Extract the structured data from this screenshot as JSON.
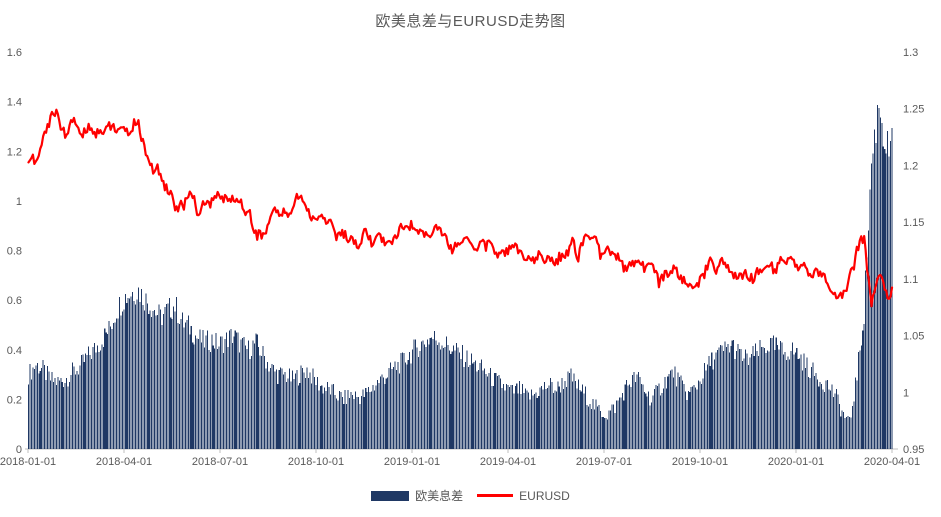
{
  "title": "欧美息差与EURUSD走势图",
  "colors": {
    "bar": "#1F3864",
    "line": "#FF0000",
    "axis_text": "#595959",
    "axis_line": "#BFBFBF",
    "title_text": "#595959",
    "background": "#FFFFFF"
  },
  "legend": [
    {
      "label": "欧美息差",
      "swatch": "bar"
    },
    {
      "label": "EURUSD",
      "swatch": "line"
    }
  ],
  "chart_data": {
    "type": "bar+line combo, daily series",
    "title": "欧美息差与EURUSD走势图",
    "x_start": "2018-01-01",
    "x_end": "2020-04-01",
    "x_tick_labels": [
      "2018-01-01",
      "2018-04-01",
      "2018-07-01",
      "2018-10-01",
      "2019-01-01",
      "2019-04-01",
      "2019-07-01",
      "2019-10-01",
      "2020-01-01",
      "2020-04-01"
    ],
    "grid": false,
    "legend_position": "bottom",
    "left_axis": {
      "min": 0,
      "max": 1.6,
      "tick_labels": [
        "0",
        "0.2",
        "0.4",
        "0.6",
        "0.8",
        "1",
        "1.2",
        "1.4",
        "1.6"
      ],
      "tick_values": [
        0,
        0.2,
        0.4,
        0.6,
        0.8,
        1,
        1.2,
        1.4,
        1.6
      ]
    },
    "right_axis": {
      "min": 0.95,
      "max": 1.3,
      "tick_labels": [
        "0.95",
        "1",
        "1.05",
        "1.1",
        "1.15",
        "1.2",
        "1.25",
        "1.3"
      ],
      "tick_values": [
        0.95,
        1,
        1.05,
        1.1,
        1.15,
        1.2,
        1.25,
        1.3
      ]
    },
    "sampling": "weekly values read from chart (weeks from 2018-01-01 to 2020-03-30); bars are daily weekday bars",
    "series": [
      {
        "name": "欧美息差",
        "type": "bar",
        "axis": "left",
        "values": [
          0.3,
          0.34,
          0.32,
          0.28,
          0.27,
          0.28,
          0.31,
          0.33,
          0.37,
          0.4,
          0.44,
          0.48,
          0.56,
          0.61,
          0.63,
          0.64,
          0.6,
          0.57,
          0.53,
          0.56,
          0.58,
          0.51,
          0.49,
          0.45,
          0.43,
          0.44,
          0.42,
          0.44,
          0.46,
          0.42,
          0.4,
          0.43,
          0.38,
          0.33,
          0.3,
          0.3,
          0.28,
          0.3,
          0.32,
          0.28,
          0.25,
          0.24,
          0.22,
          0.2,
          0.22,
          0.21,
          0.22,
          0.25,
          0.28,
          0.3,
          0.33,
          0.35,
          0.38,
          0.41,
          0.43,
          0.45,
          0.44,
          0.42,
          0.4,
          0.38,
          0.36,
          0.34,
          0.32,
          0.29,
          0.27,
          0.25,
          0.23,
          0.24,
          0.21,
          0.22,
          0.24,
          0.26,
          0.24,
          0.27,
          0.29,
          0.25,
          0.22,
          0.18,
          0.15,
          0.14,
          0.17,
          0.22,
          0.27,
          0.29,
          0.24,
          0.2,
          0.24,
          0.28,
          0.31,
          0.26,
          0.22,
          0.25,
          0.3,
          0.35,
          0.38,
          0.4,
          0.42,
          0.38,
          0.36,
          0.38,
          0.4,
          0.42,
          0.41,
          0.39,
          0.4,
          0.38,
          0.34,
          0.31,
          0.28,
          0.26,
          0.22,
          0.15,
          0.1,
          0.3,
          0.55,
          1.15,
          1.4,
          1.21
        ]
      },
      {
        "name": "EURUSD",
        "type": "line",
        "axis": "right",
        "values": [
          1.206,
          1.203,
          1.222,
          1.243,
          1.246,
          1.225,
          1.241,
          1.229,
          1.232,
          1.231,
          1.229,
          1.235,
          1.232,
          1.228,
          1.233,
          1.237,
          1.211,
          1.196,
          1.194,
          1.177,
          1.165,
          1.162,
          1.177,
          1.161,
          1.165,
          1.168,
          1.174,
          1.169,
          1.172,
          1.166,
          1.159,
          1.141,
          1.137,
          1.154,
          1.16,
          1.155,
          1.163,
          1.175,
          1.16,
          1.152,
          1.156,
          1.151,
          1.14,
          1.139,
          1.134,
          1.125,
          1.141,
          1.132,
          1.138,
          1.131,
          1.137,
          1.144,
          1.145,
          1.147,
          1.139,
          1.141,
          1.145,
          1.132,
          1.127,
          1.133,
          1.137,
          1.124,
          1.132,
          1.13,
          1.122,
          1.122,
          1.13,
          1.125,
          1.115,
          1.117,
          1.12,
          1.116,
          1.118,
          1.117,
          1.133,
          1.121,
          1.139,
          1.137,
          1.123,
          1.127,
          1.122,
          1.112,
          1.111,
          1.12,
          1.109,
          1.114,
          1.099,
          1.103,
          1.107,
          1.102,
          1.094,
          1.09,
          1.104,
          1.117,
          1.108,
          1.116,
          1.102,
          1.105,
          1.102,
          1.102,
          1.106,
          1.113,
          1.108,
          1.118,
          1.116,
          1.112,
          1.109,
          1.102,
          1.109,
          1.095,
          1.083,
          1.085,
          1.098,
          1.125,
          1.138,
          1.075,
          1.105,
          1.088
        ]
      }
    ]
  }
}
